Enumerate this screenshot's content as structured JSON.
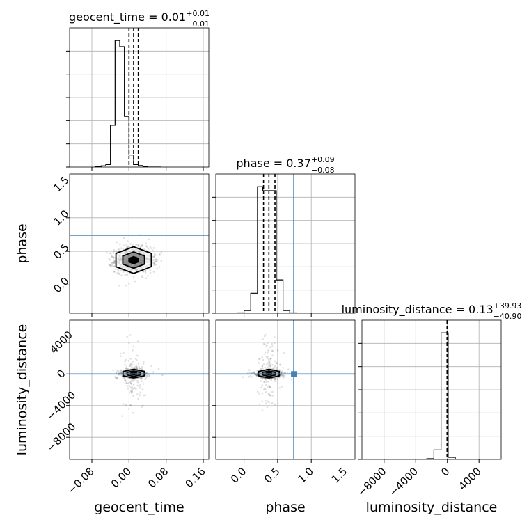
{
  "chart_data": {
    "type": "corner",
    "grid": true,
    "truth_color": "#4682b4",
    "parameters": [
      {
        "name": "geocent_time",
        "axis_label": "geocent_time",
        "title_prefix": "geocent_time = 0.01",
        "title_upper": "+0.01",
        "title_lower": "−0.01",
        "median": 0.01,
        "quantiles": [
          0.0,
          0.01,
          0.02
        ],
        "truth": null,
        "range": [
          -0.128,
          0.172
        ],
        "ticks": [
          -0.08,
          0.0,
          0.08,
          0.16
        ],
        "tick_labels": [
          "−0.08",
          "0.00",
          "0.08",
          "0.16"
        ],
        "hist_bin_edges": [
          -0.0725,
          -0.06,
          -0.05,
          -0.04,
          -0.03,
          -0.02,
          -0.01,
          0.0,
          0.01,
          0.02,
          0.03,
          0.04,
          0.05,
          0.06,
          0.07
        ],
        "hist_heights": [
          0.003,
          0.01,
          0.02,
          0.33,
          0.998,
          0.95,
          0.4,
          0.095,
          0.02,
          0.012,
          0.003,
          0.0,
          0.0,
          0.0
        ]
      },
      {
        "name": "phase",
        "axis_label": "phase",
        "title_prefix": "phase = 0.37",
        "title_upper": "+0.09",
        "title_lower": "−0.08",
        "median": 0.37,
        "quantiles": [
          0.29,
          0.37,
          0.46
        ],
        "truth": 0.74,
        "range": [
          -0.42,
          1.65
        ],
        "ticks": [
          0.0,
          0.5,
          1.0,
          1.5
        ],
        "tick_labels": [
          "0.0",
          "0.5",
          "1.0",
          "1.5"
        ],
        "hist_bin_edges": [
          -0.1,
          0.0,
          0.1,
          0.2,
          0.28,
          0.48,
          0.58,
          0.68,
          0.78
        ],
        "hist_heights": [
          0.003,
          0.02,
          0.15,
          0.95,
          0.92,
          0.25,
          0.02,
          0.003
        ]
      },
      {
        "name": "luminosity_distance",
        "axis_label": "luminosity_distance",
        "title_prefix": "luminosity_distance = 0.13",
        "title_upper": "+39.93",
        "title_lower": "−40.90",
        "median": 0.13,
        "quantiles": [
          -40.77,
          0.13,
          40.06
        ],
        "truth": null,
        "range": [
          -10800,
          6800
        ],
        "ticks": [
          -8000,
          -4000,
          0,
          4000
        ],
        "tick_labels": [
          "−8000",
          "−4000",
          "0",
          "4000"
        ],
        "hist_bin_edges": [
          -2600,
          -1700,
          -800,
          100,
          1000,
          1900,
          2800
        ],
        "hist_heights": [
          0.005,
          0.07,
          0.93,
          0.015,
          0.0,
          0.0
        ]
      }
    ],
    "y_axes": {
      "phase": {
        "range": [
          -0.42,
          1.65
        ],
        "ticks": [
          0.0,
          0.5,
          1.0,
          1.5
        ],
        "tick_labels": [
          "0.0",
          "0.5",
          "1.0",
          "1.5"
        ]
      },
      "luminosity_distance": {
        "range": [
          -10800,
          6800
        ],
        "ticks": [
          -8000,
          -4000,
          0,
          4000
        ],
        "tick_labels": [
          "−8000",
          "−4000",
          "0",
          "4000"
        ]
      }
    },
    "joint": [
      {
        "x": "geocent_time",
        "y": "phase",
        "center": [
          0.01,
          0.37
        ],
        "spread": [
          0.02,
          0.09
        ],
        "outer_extent": [
          0.06,
          0.45
        ],
        "truth_y": 0.74
      },
      {
        "x": "geocent_time",
        "y": "luminosity_distance",
        "center": [
          0.01,
          40
        ],
        "spread": [
          0.012,
          250
        ],
        "outer_extent": [
          0.15,
          7700
        ],
        "truth_y": 0
      },
      {
        "x": "phase",
        "y": "luminosity_distance",
        "center": [
          0.37,
          40
        ],
        "spread": [
          0.08,
          250
        ],
        "outer_extent": [
          0.5,
          7700
        ],
        "truth_x": 0.74,
        "truth_y": 0
      }
    ]
  }
}
